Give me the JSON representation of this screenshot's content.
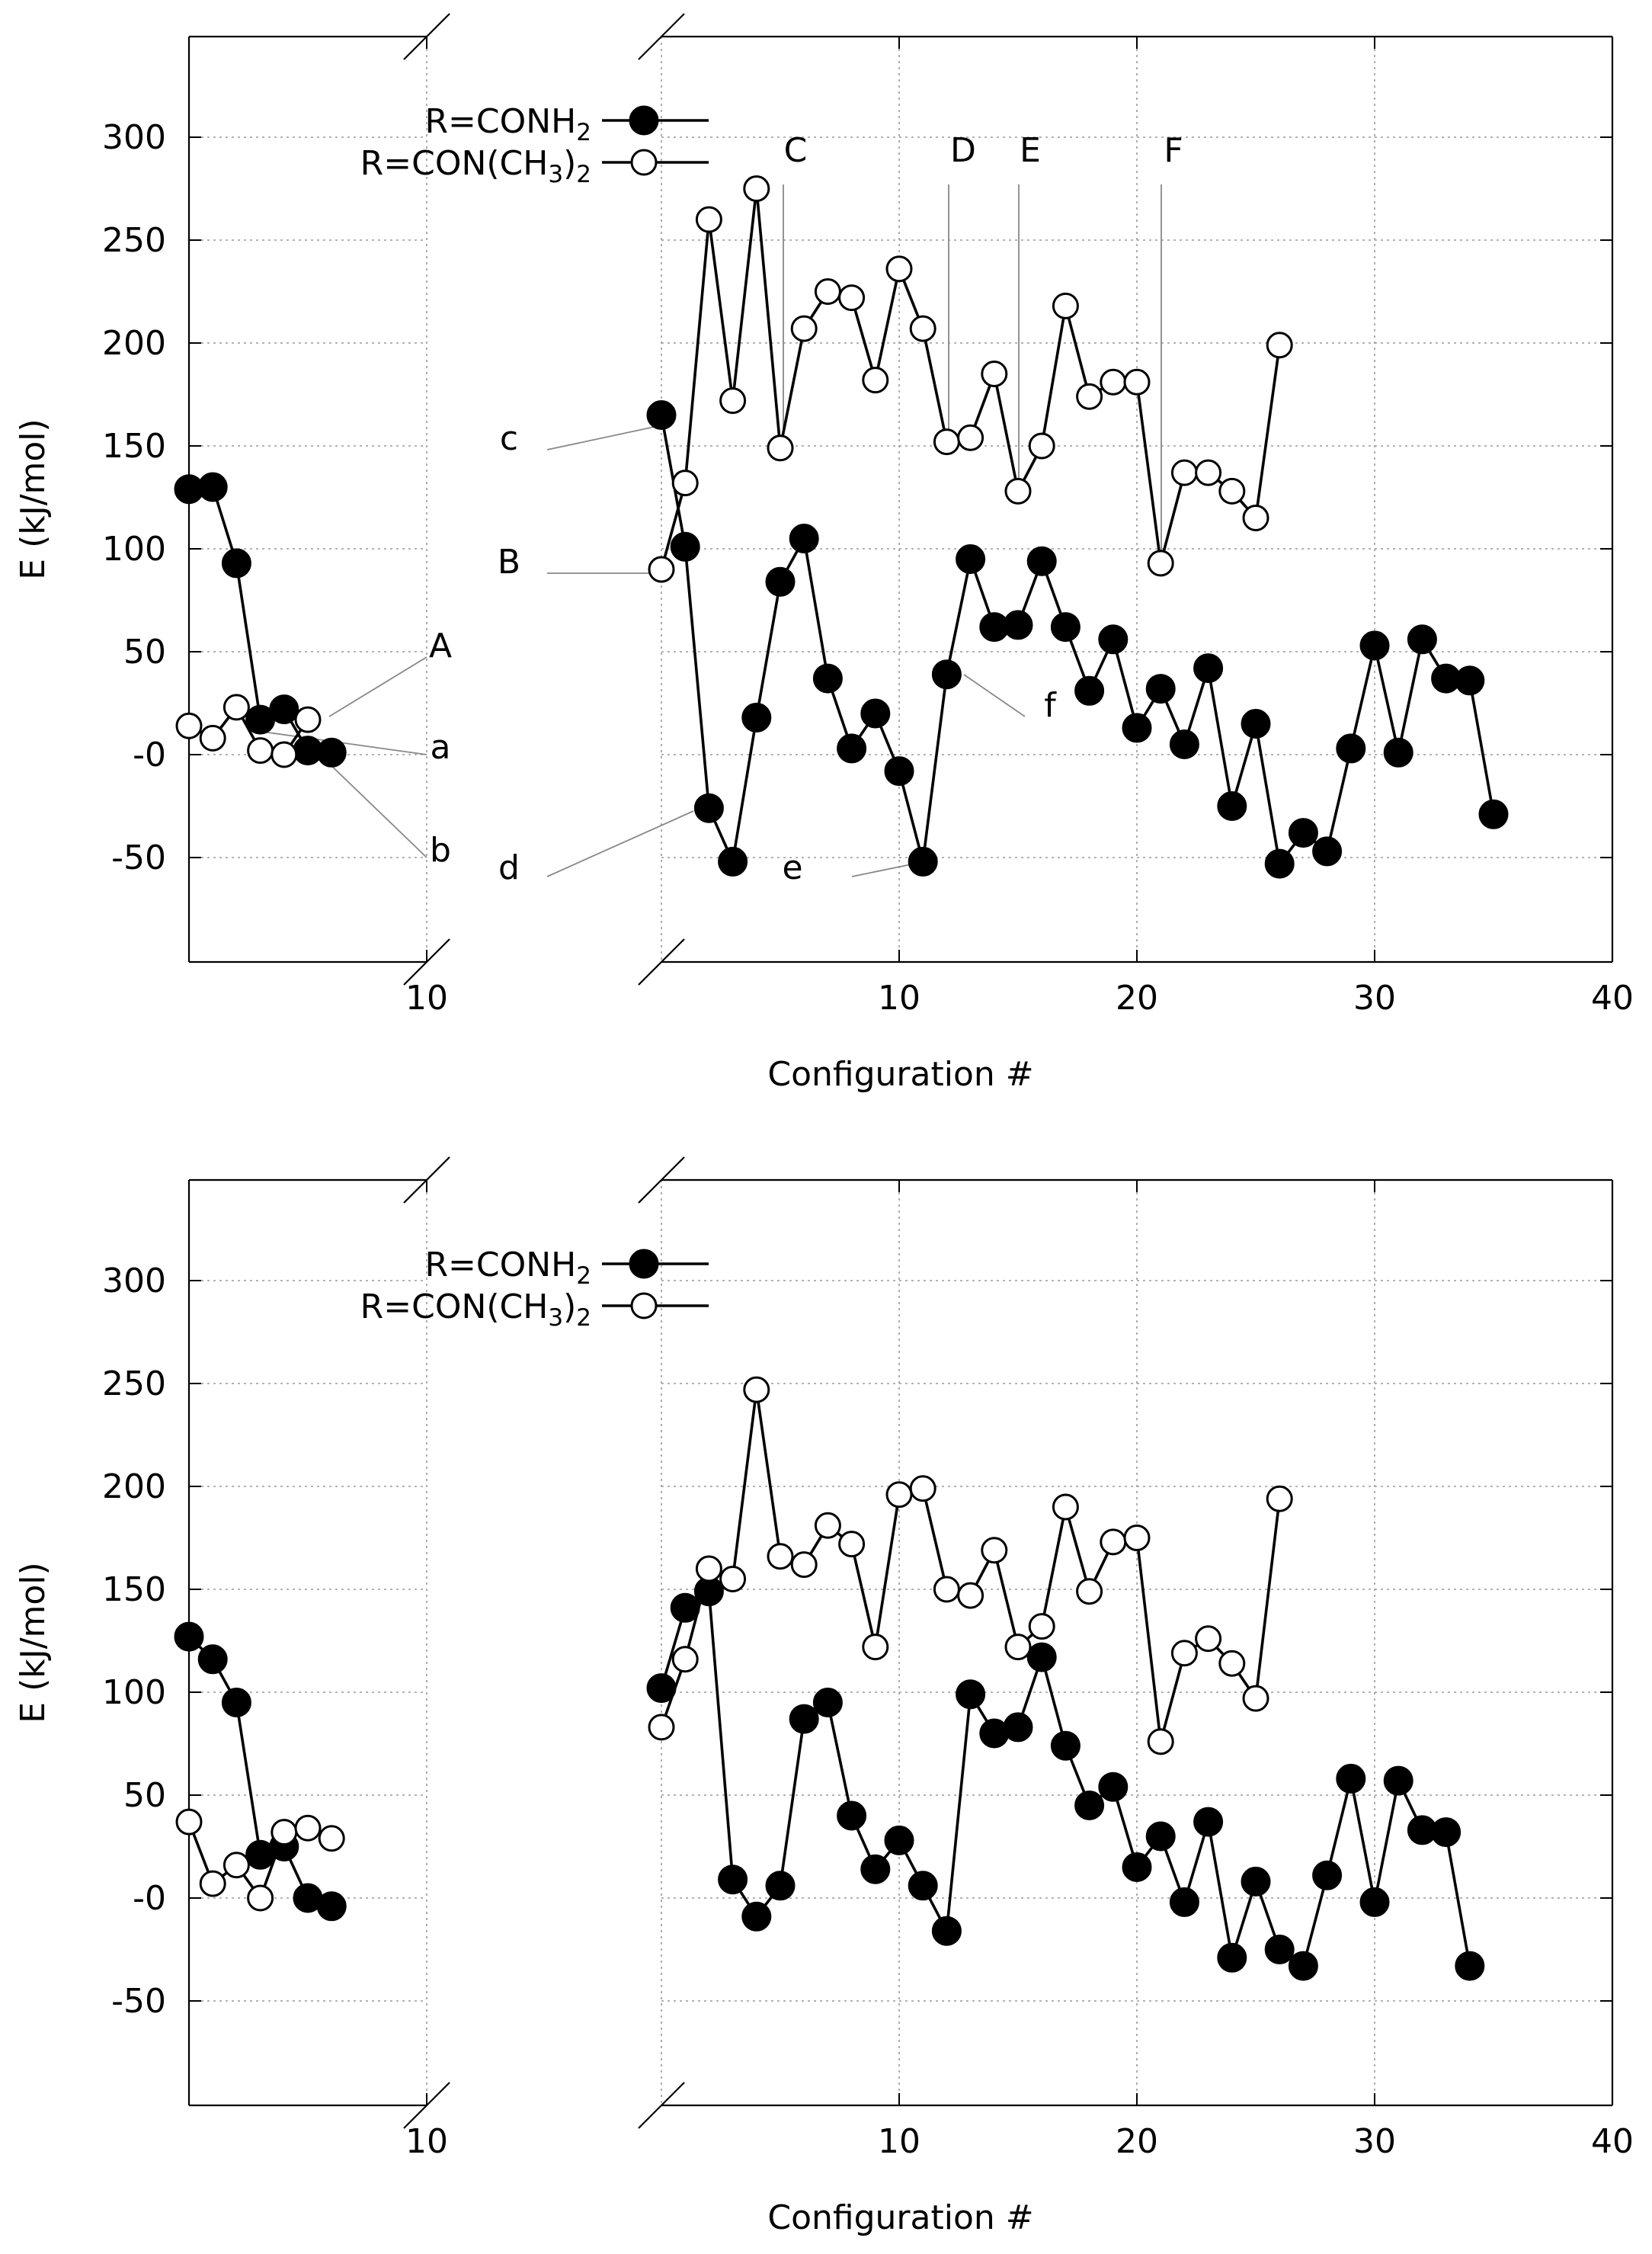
{
  "chart_data": [
    {
      "type": "line",
      "xlabel": "Configuration #",
      "ylabel": "E (kJ/mol)",
      "ylim": [
        -100,
        350
      ],
      "yticks": [
        300,
        250,
        200,
        150,
        100,
        50,
        0,
        -50
      ],
      "ytick_labels": [
        "300",
        "250",
        "200",
        "150",
        "100",
        "50",
        "-0",
        "-50"
      ],
      "grid": true,
      "legend_position": "top-left",
      "left_panel": {
        "xlim": [
          0,
          10
        ],
        "xticks": [
          10
        ],
        "xtick_labels": [
          "10"
        ]
      },
      "right_panel": {
        "xlim": [
          0,
          40
        ],
        "xticks": [
          10,
          20,
          30,
          40
        ],
        "xtick_labels": [
          "10",
          "20",
          "30",
          "40"
        ]
      },
      "series": [
        {
          "name_main": "R=CONH",
          "name_sub": "2",
          "marker": "filled-circle",
          "left": [
            [
              0,
              129
            ],
            [
              1,
              130
            ],
            [
              2,
              93
            ],
            [
              3,
              17
            ],
            [
              4,
              22
            ],
            [
              5,
              2
            ],
            [
              6,
              1
            ]
          ],
          "right": [
            [
              0,
              165
            ],
            [
              1,
              101
            ],
            [
              2,
              -26
            ],
            [
              3,
              -52
            ],
            [
              4,
              18
            ],
            [
              5,
              84
            ],
            [
              6,
              105
            ],
            [
              7,
              37
            ],
            [
              8,
              3
            ],
            [
              9,
              20
            ],
            [
              10,
              -8
            ],
            [
              11,
              -52
            ],
            [
              12,
              39
            ],
            [
              13,
              95
            ],
            [
              14,
              62
            ],
            [
              15,
              63
            ],
            [
              16,
              94
            ],
            [
              17,
              62
            ],
            [
              18,
              31
            ],
            [
              19,
              56
            ],
            [
              20,
              13
            ],
            [
              21,
              32
            ],
            [
              22,
              5
            ],
            [
              23,
              42
            ],
            [
              24,
              -25
            ],
            [
              25,
              15
            ],
            [
              26,
              -53
            ],
            [
              27,
              -38
            ],
            [
              28,
              -47
            ],
            [
              29,
              3
            ],
            [
              30,
              53
            ],
            [
              31,
              1
            ],
            [
              32,
              56
            ],
            [
              33,
              37
            ],
            [
              34,
              36
            ],
            [
              35,
              -29
            ]
          ]
        },
        {
          "name_main": "R=CON(CH",
          "name_sub1": "3",
          "name_mid": ")",
          "name_sub2": "2",
          "marker": "open-circle",
          "left": [
            [
              0,
              14
            ],
            [
              1,
              8
            ],
            [
              2,
              23
            ],
            [
              3,
              2
            ],
            [
              4,
              0
            ],
            [
              5,
              17
            ]
          ],
          "right": [
            [
              0,
              90
            ],
            [
              1,
              132
            ],
            [
              2,
              260
            ],
            [
              3,
              172
            ],
            [
              4,
              275
            ],
            [
              5,
              149
            ],
            [
              6,
              207
            ],
            [
              7,
              225
            ],
            [
              8,
              222
            ],
            [
              9,
              182
            ],
            [
              10,
              236
            ],
            [
              11,
              207
            ],
            [
              12,
              152
            ],
            [
              13,
              154
            ],
            [
              14,
              185
            ],
            [
              15,
              128
            ],
            [
              16,
              150
            ],
            [
              17,
              218
            ],
            [
              18,
              174
            ],
            [
              19,
              181
            ],
            [
              20,
              181
            ],
            [
              21,
              93
            ],
            [
              22,
              137
            ],
            [
              23,
              137
            ],
            [
              24,
              128
            ],
            [
              25,
              115
            ],
            [
              26,
              199
            ]
          ]
        }
      ],
      "annotations": [
        {
          "label": "A"
        },
        {
          "label": "a"
        },
        {
          "label": "b"
        },
        {
          "label": "B"
        },
        {
          "label": "c"
        },
        {
          "label": "d"
        },
        {
          "label": "C"
        },
        {
          "label": "D"
        },
        {
          "label": "E"
        },
        {
          "label": "F"
        },
        {
          "label": "e"
        },
        {
          "label": "f"
        }
      ]
    },
    {
      "type": "line",
      "xlabel": "Configuration #",
      "ylabel": "E (kJ/mol)",
      "ylim": [
        -100,
        350
      ],
      "yticks": [
        300,
        250,
        200,
        150,
        100,
        50,
        0,
        -50
      ],
      "ytick_labels": [
        "300",
        "250",
        "200",
        "150",
        "100",
        "50",
        "-0",
        "-50"
      ],
      "grid": true,
      "legend_position": "top-left",
      "left_panel": {
        "xlim": [
          0,
          10
        ],
        "xticks": [
          10
        ],
        "xtick_labels": [
          "10"
        ]
      },
      "right_panel": {
        "xlim": [
          0,
          40
        ],
        "xticks": [
          10,
          20,
          30,
          40
        ],
        "xtick_labels": [
          "10",
          "20",
          "30",
          "40"
        ]
      },
      "series": [
        {
          "name_main": "R=CONH",
          "name_sub": "2",
          "marker": "filled-circle",
          "left": [
            [
              0,
              127
            ],
            [
              1,
              116
            ],
            [
              2,
              95
            ],
            [
              3,
              21
            ],
            [
              4,
              25
            ],
            [
              5,
              0
            ],
            [
              6,
              -4
            ]
          ],
          "right": [
            [
              0,
              102
            ],
            [
              1,
              141
            ],
            [
              2,
              149
            ],
            [
              3,
              9
            ],
            [
              4,
              -9
            ],
            [
              5,
              6
            ],
            [
              6,
              87
            ],
            [
              7,
              95
            ],
            [
              8,
              40
            ],
            [
              9,
              14
            ],
            [
              10,
              28
            ],
            [
              11,
              6
            ],
            [
              12,
              -16
            ],
            [
              13,
              99
            ],
            [
              14,
              80
            ],
            [
              15,
              83
            ],
            [
              16,
              117
            ],
            [
              17,
              74
            ],
            [
              18,
              45
            ],
            [
              19,
              54
            ],
            [
              20,
              15
            ],
            [
              21,
              30
            ],
            [
              22,
              -2
            ],
            [
              23,
              37
            ],
            [
              24,
              -29
            ],
            [
              25,
              8
            ],
            [
              26,
              -25
            ],
            [
              27,
              -33
            ],
            [
              28,
              11
            ],
            [
              29,
              58
            ],
            [
              30,
              -2
            ],
            [
              31,
              57
            ],
            [
              32,
              33
            ],
            [
              33,
              32
            ],
            [
              34,
              -33
            ]
          ]
        },
        {
          "name_main": "R=CON(CH",
          "name_sub1": "3",
          "name_mid": ")",
          "name_sub2": "2",
          "marker": "open-circle",
          "left": [
            [
              0,
              37
            ],
            [
              1,
              7
            ],
            [
              2,
              16
            ],
            [
              3,
              0
            ],
            [
              4,
              32
            ],
            [
              5,
              34
            ],
            [
              6,
              29
            ]
          ],
          "right": [
            [
              0,
              83
            ],
            [
              1,
              116
            ],
            [
              2,
              160
            ],
            [
              3,
              155
            ],
            [
              4,
              247
            ],
            [
              5,
              166
            ],
            [
              6,
              162
            ],
            [
              7,
              181
            ],
            [
              8,
              172
            ],
            [
              9,
              122
            ],
            [
              10,
              196
            ],
            [
              11,
              199
            ],
            [
              12,
              150
            ],
            [
              13,
              147
            ],
            [
              14,
              169
            ],
            [
              15,
              122
            ],
            [
              16,
              132
            ],
            [
              17,
              190
            ],
            [
              18,
              149
            ],
            [
              19,
              173
            ],
            [
              20,
              175
            ],
            [
              21,
              76
            ],
            [
              22,
              119
            ],
            [
              23,
              126
            ],
            [
              24,
              114
            ],
            [
              25,
              97
            ],
            [
              26,
              194
            ]
          ]
        }
      ],
      "annotations": []
    }
  ]
}
